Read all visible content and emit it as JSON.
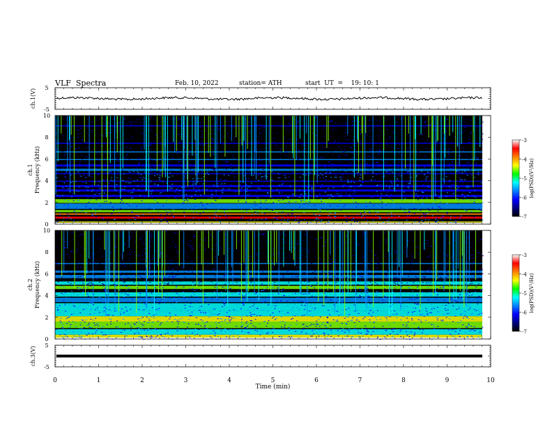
{
  "header": {
    "title": "VLF  Spectra",
    "date": "Feb. 10, 2022",
    "station": "station= ATH",
    "start": "start  UT  =    19: 10: 1"
  },
  "colors": {
    "spectrum_bg": "#000000",
    "trace": "#000000",
    "colormap": [
      "#000000",
      "#00007f",
      "#0000ff",
      "#0090ff",
      "#00ffff",
      "#7fff00",
      "#ffff00",
      "#ff7f00",
      "#ff0000",
      "#ffffff"
    ]
  },
  "chart_data": [
    {
      "type": "line",
      "panel": "ch1",
      "ylabel": "ch.1(V)",
      "ylim": [
        -5,
        5
      ],
      "yticks": [
        "5",
        "-5"
      ],
      "xlim": [
        0,
        10
      ],
      "baseline_v": 0,
      "description_series": "waveform trace"
    },
    {
      "type": "heatmap",
      "panel": "ch1-spectrogram",
      "ylabel": "ch.1\nFrequency (kHz)",
      "ylabel_lines": [
        "ch.1",
        "Frequency  (kHz)"
      ],
      "ylim": [
        0,
        10
      ],
      "yticks": [
        "0",
        "2",
        "4",
        "6",
        "8",
        "10"
      ],
      "xlim": [
        0,
        9.8
      ],
      "colorbar": {
        "label": "log(PSD)(V²/Hz)",
        "range": [
          -7,
          -3
        ],
        "ticks": [
          "-3",
          "-4",
          "-5",
          "-6",
          "-7"
        ]
      }
    },
    {
      "type": "heatmap",
      "panel": "ch2-spectrogram",
      "ylabel_lines": [
        "ch.2",
        "Frequency  (kHz)"
      ],
      "ylim": [
        0,
        10
      ],
      "yticks": [
        "0",
        "2",
        "4",
        "6",
        "8",
        "10"
      ],
      "xlim": [
        0,
        9.8
      ],
      "colorbar": {
        "label": "log(PSD)(V²/Hz)",
        "range": [
          -7,
          -3
        ],
        "ticks": [
          "-3",
          "-4",
          "-5",
          "-6",
          "-7"
        ]
      }
    },
    {
      "type": "line",
      "panel": "ch3",
      "ylabel": "ch.3(V)",
      "ylim": [
        -5,
        5
      ],
      "yticks": [
        "5",
        "-5"
      ],
      "xlim": [
        0,
        10
      ],
      "baseline_v": 0
    }
  ],
  "xaxis": {
    "label": "Time  (min)",
    "ticks": [
      "0",
      "1",
      "2",
      "3",
      "4",
      "5",
      "6",
      "7",
      "8",
      "9",
      "10"
    ],
    "range": [
      0,
      10
    ]
  }
}
